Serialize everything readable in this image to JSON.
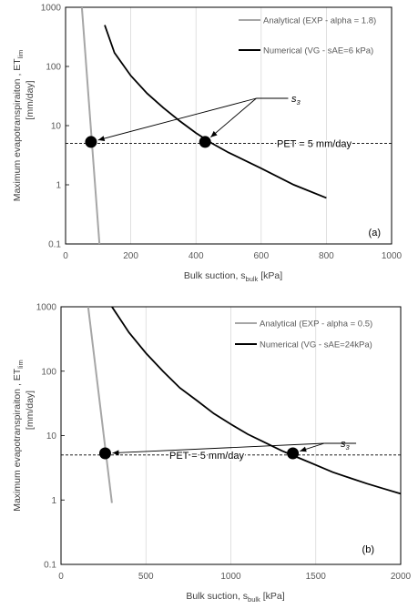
{
  "chart_data": [
    {
      "type": "line",
      "panel_label": "(a)",
      "xlabel": "Bulk suction, s",
      "xlabel_sub": "bulk",
      "xlabel_unit": " [kPa]",
      "ylabel": "Maximum evapotranspiraiton , ET",
      "ylabel_sub": "lim",
      "ylabel_unit": "[mm/day]",
      "xlim": [
        0,
        1000
      ],
      "ylim": [
        0.1,
        1000
      ],
      "y_scale": "log",
      "xticks": [
        0,
        200,
        400,
        600,
        800,
        1000
      ],
      "xtick_labels": [
        "0",
        "200",
        "400",
        "600",
        "800",
        "1000"
      ],
      "yticks": [
        0.1,
        1,
        10,
        100,
        1000
      ],
      "ytick_labels": [
        "0.1",
        "1",
        "10",
        "100",
        "1000"
      ],
      "grid": "vertical",
      "legend": "top-right",
      "series": [
        {
          "name": "Analytical (EXP - alpha = 1.8)",
          "color": "#a6a6a6",
          "x": [
            50,
            104
          ],
          "y": [
            1000,
            0.1
          ]
        },
        {
          "name": "Numerical (VG - sAE=6 kPa)",
          "color": "#000000",
          "x": [
            120,
            150,
            200,
            250,
            300,
            350,
            400,
            450,
            500,
            600,
            700,
            800
          ],
          "y": [
            500,
            170,
            70,
            35,
            20,
            12,
            7.5,
            5,
            3.5,
            1.9,
            1.0,
            0.6
          ]
        }
      ],
      "pet": {
        "label": "PET = 5 mm/day",
        "y": 5
      },
      "points": [
        {
          "x": 78,
          "y": 5.3
        },
        {
          "x": 428,
          "y": 5.3
        }
      ],
      "annotation": {
        "label": "s",
        "label_sub": "3",
        "anchor": [
          585,
          105
        ]
      }
    },
    {
      "type": "line",
      "panel_label": "(b)",
      "xlabel": "Bulk suction, s",
      "xlabel_sub": "bulk",
      "xlabel_unit": " [kPa]",
      "ylabel": "Maximum evapotranspiraiton , ET",
      "ylabel_sub": "lim",
      "ylabel_unit": "[mm/day]",
      "xlim": [
        0,
        2000
      ],
      "ylim": [
        0.1,
        1000
      ],
      "y_scale": "log",
      "xticks": [
        0,
        500,
        1000,
        1500,
        2000
      ],
      "xtick_labels": [
        "0",
        "500",
        "1000",
        "1500",
        "2000"
      ],
      "yticks": [
        0.1,
        1,
        10,
        100,
        1000
      ],
      "ytick_labels": [
        "0.1",
        "1",
        "10",
        "100",
        "1000"
      ],
      "grid": "vertical",
      "legend": "top-right",
      "series": [
        {
          "name": "Analytical (EXP - alpha = 0.5)",
          "color": "#a6a6a6",
          "x": [
            160,
            300
          ],
          "y": [
            1000,
            0.9
          ]
        },
        {
          "name": "Numerical (VG - sAE=24kPa)",
          "color": "#000000",
          "x": [
            300,
            400,
            500,
            600,
            700,
            800,
            900,
            1000,
            1100,
            1200,
            1300,
            1400,
            1500,
            1600,
            1700,
            1800,
            1900,
            2000
          ],
          "y": [
            1000,
            400,
            190,
            100,
            55,
            35,
            22,
            15,
            10.5,
            7.8,
            5.8,
            4.5,
            3.5,
            2.7,
            2.2,
            1.8,
            1.5,
            1.25
          ]
        }
      ],
      "pet": {
        "label": "PET = 5 mm/day",
        "y": 5
      },
      "points": [
        {
          "x": 260,
          "y": 5.3
        },
        {
          "x": 1365,
          "y": 5.3
        }
      ],
      "annotation": {
        "label": "s",
        "label_sub": "3",
        "anchor": [
          1550,
          37
        ]
      }
    }
  ]
}
